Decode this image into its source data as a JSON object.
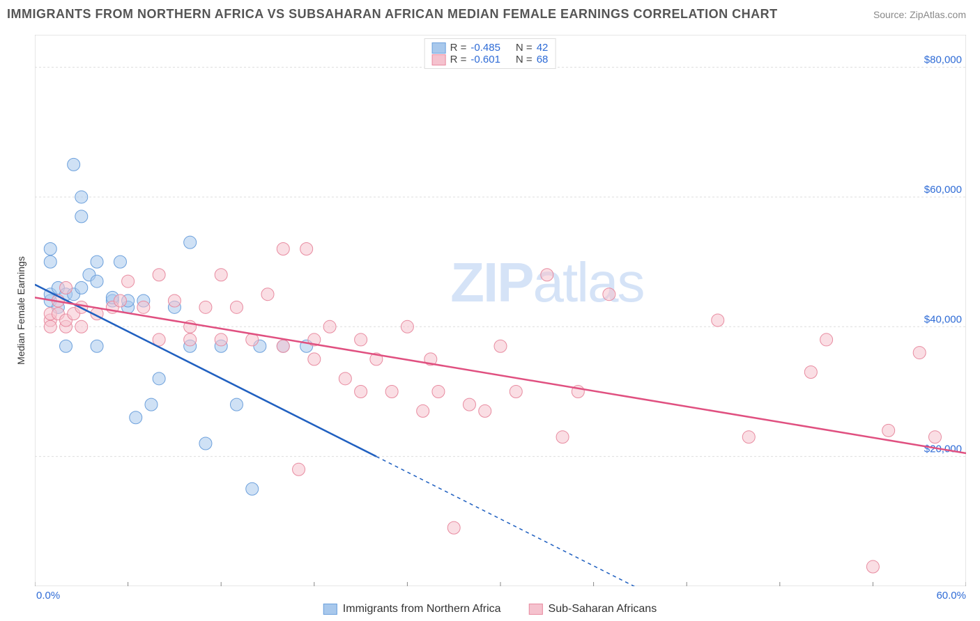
{
  "title": "IMMIGRANTS FROM NORTHERN AFRICA VS SUBSAHARAN AFRICAN MEDIAN FEMALE EARNINGS CORRELATION CHART",
  "source": "Source: ZipAtlas.com",
  "watermark_bold": "ZIP",
  "watermark_light": "atlas",
  "ylabel": "Median Female Earnings",
  "chart": {
    "type": "scatter",
    "background_color": "#ffffff",
    "grid_color": "#dddddd",
    "border_color": "#cccccc",
    "xlim": [
      0,
      60
    ],
    "ylim": [
      0,
      85000
    ],
    "xtick_positions": [
      0,
      6,
      12,
      18,
      24,
      30,
      36,
      42,
      48,
      54,
      60
    ],
    "xtick_labels_shown": {
      "0": "0.0%",
      "60": "60.0%"
    },
    "ytick_positions": [
      20000,
      40000,
      60000,
      80000
    ],
    "ytick_labels": [
      "$20,000",
      "$40,000",
      "$60,000",
      "$80,000"
    ],
    "marker_radius": 9,
    "marker_opacity": 0.55,
    "line_width": 2.5,
    "series": [
      {
        "name": "Immigrants from Northern Africa",
        "fill_color": "#a8c8ec",
        "stroke_color": "#6ca0dc",
        "line_color": "#2060c0",
        "R": "-0.485",
        "N": "42",
        "trend": {
          "x1": 0,
          "y1": 46500,
          "x2": 22,
          "y2": 20000,
          "dash_from_x": 22,
          "dash_to_x": 40
        },
        "points": [
          [
            1,
            50000
          ],
          [
            1,
            52000
          ],
          [
            1,
            44000
          ],
          [
            1,
            45000
          ],
          [
            1.5,
            43000
          ],
          [
            1.5,
            46000
          ],
          [
            2,
            45000
          ],
          [
            2,
            37000
          ],
          [
            2.5,
            65000
          ],
          [
            2.5,
            45000
          ],
          [
            3,
            46000
          ],
          [
            3,
            60000
          ],
          [
            3,
            57000
          ],
          [
            3.5,
            48000
          ],
          [
            4,
            47000
          ],
          [
            4,
            50000
          ],
          [
            4,
            37000
          ],
          [
            5,
            44000
          ],
          [
            5,
            44500
          ],
          [
            5.5,
            50000
          ],
          [
            6,
            43000
          ],
          [
            6,
            44000
          ],
          [
            6.5,
            26000
          ],
          [
            7,
            44000
          ],
          [
            7.5,
            28000
          ],
          [
            8,
            32000
          ],
          [
            9,
            43000
          ],
          [
            10,
            37000
          ],
          [
            10,
            53000
          ],
          [
            11,
            22000
          ],
          [
            12,
            37000
          ],
          [
            13,
            28000
          ],
          [
            14,
            15000
          ],
          [
            14.5,
            37000
          ],
          [
            16,
            37000
          ],
          [
            17.5,
            37000
          ]
        ]
      },
      {
        "name": "Sub-Saharan Africans",
        "fill_color": "#f5c2ce",
        "stroke_color": "#e88ba0",
        "line_color": "#e05080",
        "R": "-0.601",
        "N": "68",
        "trend": {
          "x1": 0,
          "y1": 44500,
          "x2": 60,
          "y2": 20500
        },
        "points": [
          [
            1,
            41000
          ],
          [
            1,
            42000
          ],
          [
            1,
            40000
          ],
          [
            1.5,
            42000
          ],
          [
            1.5,
            44000
          ],
          [
            2,
            40000
          ],
          [
            2,
            41000
          ],
          [
            2,
            46000
          ],
          [
            2.5,
            42000
          ],
          [
            3,
            43000
          ],
          [
            3,
            40000
          ],
          [
            4,
            42000
          ],
          [
            5,
            43000
          ],
          [
            5.5,
            44000
          ],
          [
            6,
            47000
          ],
          [
            7,
            43000
          ],
          [
            8,
            38000
          ],
          [
            8,
            48000
          ],
          [
            9,
            44000
          ],
          [
            10,
            40000
          ],
          [
            10,
            38000
          ],
          [
            11,
            43000
          ],
          [
            12,
            38000
          ],
          [
            12,
            48000
          ],
          [
            13,
            43000
          ],
          [
            14,
            38000
          ],
          [
            15,
            45000
          ],
          [
            16,
            52000
          ],
          [
            16,
            37000
          ],
          [
            17,
            18000
          ],
          [
            17.5,
            52000
          ],
          [
            18,
            38000
          ],
          [
            18,
            35000
          ],
          [
            19,
            40000
          ],
          [
            20,
            32000
          ],
          [
            21,
            30000
          ],
          [
            21,
            38000
          ],
          [
            22,
            35000
          ],
          [
            23,
            30000
          ],
          [
            24,
            40000
          ],
          [
            25,
            27000
          ],
          [
            25.5,
            35000
          ],
          [
            26,
            30000
          ],
          [
            27,
            9000
          ],
          [
            28,
            28000
          ],
          [
            29,
            27000
          ],
          [
            30,
            37000
          ],
          [
            31,
            30000
          ],
          [
            33,
            48000
          ],
          [
            34,
            23000
          ],
          [
            35,
            30000
          ],
          [
            37,
            45000
          ],
          [
            44,
            41000
          ],
          [
            46,
            23000
          ],
          [
            50,
            33000
          ],
          [
            51,
            38000
          ],
          [
            54,
            3000
          ],
          [
            55,
            24000
          ],
          [
            57,
            36000
          ],
          [
            58,
            23000
          ]
        ]
      }
    ]
  },
  "legend_top": [
    {
      "swatch_fill": "#a8c8ec",
      "swatch_stroke": "#6ca0dc",
      "r_label": "R =",
      "r_val": "-0.485",
      "n_label": "N =",
      "n_val": "42"
    },
    {
      "swatch_fill": "#f5c2ce",
      "swatch_stroke": "#e88ba0",
      "r_label": "R =",
      "r_val": "-0.601",
      "n_label": "N =",
      "n_val": "68"
    }
  ],
  "legend_bottom": [
    {
      "swatch_fill": "#a8c8ec",
      "swatch_stroke": "#6ca0dc",
      "label": "Immigrants from Northern Africa"
    },
    {
      "swatch_fill": "#f5c2ce",
      "swatch_stroke": "#e88ba0",
      "label": "Sub-Saharan Africans"
    }
  ]
}
